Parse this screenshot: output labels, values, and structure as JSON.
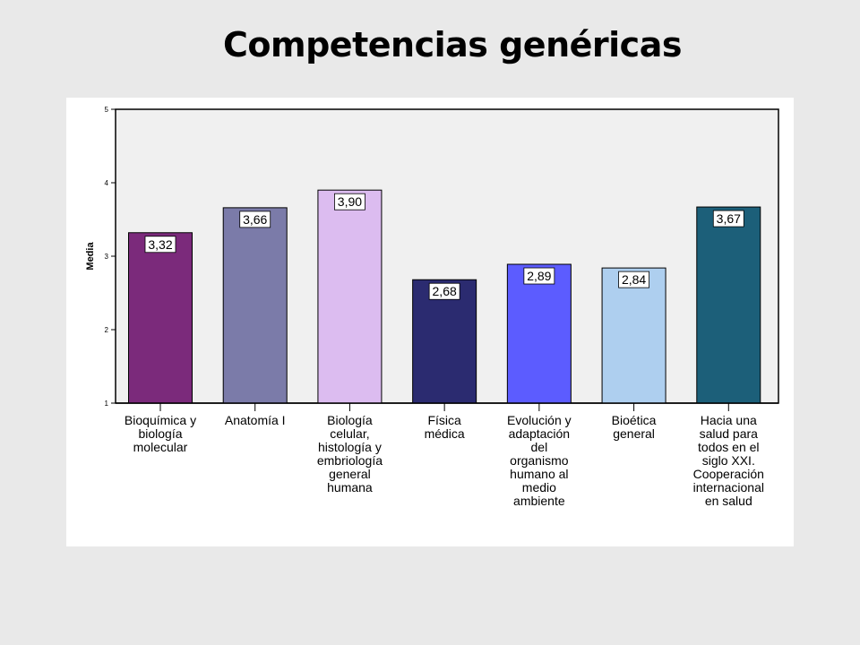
{
  "title": "Competencias genéricas",
  "chart_data": {
    "type": "bar",
    "title": "Competencias genéricas",
    "xlabel": "",
    "ylabel": "Media",
    "ylim": [
      1,
      5
    ],
    "yticks": [
      "1",
      "2",
      "3",
      "4",
      "5"
    ],
    "grid": false,
    "categories": [
      "Bioquímica y biología molecular",
      "Anatomía I",
      "Biología celular, histología y embriología general humana",
      "Física médica",
      "Evolución y adaptación del organismo humano al medio ambiente",
      "Bioética general",
      "Hacia una salud para todos en el siglo XXI. Cooperación internacional en salud"
    ],
    "category_lines": [
      [
        "Bioquímica y",
        "biología",
        "molecular"
      ],
      [
        "Anatomía I"
      ],
      [
        "Biología",
        "celular,",
        "histología y",
        "embriología",
        "general",
        "humana"
      ],
      [
        "Física",
        "médica"
      ],
      [
        "Evolución y",
        "adaptación",
        "del",
        "organismo",
        "humano al",
        "medio",
        "ambiente"
      ],
      [
        "Bioética",
        "general"
      ],
      [
        "Hacia una",
        "salud para",
        "todos en el",
        "siglo XXI.",
        "Cooperación",
        "internacional",
        "en salud"
      ]
    ],
    "values": [
      3.32,
      3.66,
      3.9,
      2.68,
      2.89,
      2.84,
      3.67
    ],
    "value_labels": [
      "3,32",
      "3,66",
      "3,90",
      "2,68",
      "2,89",
      "2,84",
      "3,67"
    ],
    "colors": [
      "#7b2a7b",
      "#7b7ba9",
      "#dcbcf0",
      "#2b2b70",
      "#5c5cff",
      "#aecfef",
      "#1c5f79"
    ],
    "plot_background": "#f0f0f0"
  }
}
